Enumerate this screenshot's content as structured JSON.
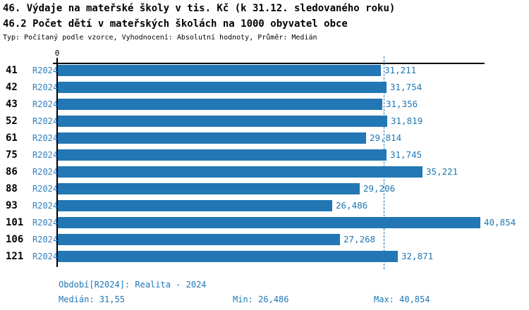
{
  "header": {
    "title_line1": "46. Výdaje na mateřské školy v tis. Kč (k 31.12. sledovaného roku)",
    "title_line2": "46.2 Počet dětí v mateřských školách na 1000 obyvatel obce",
    "subtitle": "Typ: Počítaný podle vzorce, Vyhodnocení: Absolutní hodnoty, Průměr: Medián"
  },
  "chart_data": {
    "type": "bar",
    "orientation": "horizontal",
    "bar_color": "#2277b4",
    "median_line_color": "#2277b4",
    "axis": {
      "zero_label": "0",
      "x_min": 0,
      "x_max": 41300,
      "grid": "off"
    },
    "median_value": 31550,
    "categories": [
      "41",
      "42",
      "43",
      "52",
      "61",
      "75",
      "86",
      "88",
      "93",
      "101",
      "106",
      "121"
    ],
    "series": [
      {
        "name": "R2024",
        "values": [
          31211,
          31754,
          31356,
          31819,
          29814,
          31745,
          35221,
          29206,
          26486,
          40854,
          27268,
          32871
        ]
      }
    ],
    "rows": [
      {
        "id": "41",
        "period": "R2024",
        "value": 31211,
        "value_label": "31,211"
      },
      {
        "id": "42",
        "period": "R2024",
        "value": 31754,
        "value_label": "31,754"
      },
      {
        "id": "43",
        "period": "R2024",
        "value": 31356,
        "value_label": "31,356"
      },
      {
        "id": "52",
        "period": "R2024",
        "value": 31819,
        "value_label": "31,819"
      },
      {
        "id": "61",
        "period": "R2024",
        "value": 29814,
        "value_label": "29,814"
      },
      {
        "id": "75",
        "period": "R2024",
        "value": 31745,
        "value_label": "31,745"
      },
      {
        "id": "86",
        "period": "R2024",
        "value": 35221,
        "value_label": "35,221"
      },
      {
        "id": "88",
        "period": "R2024",
        "value": 29206,
        "value_label": "29,206"
      },
      {
        "id": "93",
        "period": "R2024",
        "value": 26486,
        "value_label": "26,486"
      },
      {
        "id": "101",
        "period": "R2024",
        "value": 40854,
        "value_label": "40,854"
      },
      {
        "id": "106",
        "period": "R2024",
        "value": 27268,
        "value_label": "27,268"
      },
      {
        "id": "121",
        "period": "R2024",
        "value": 32871,
        "value_label": "32,871"
      }
    ]
  },
  "footer": {
    "period_line": "Období[R2024]: Realita - 2024",
    "median_label": "Medián: 31,55",
    "min_label": "Min: 26,486",
    "max_label": "Max: 40,854"
  }
}
